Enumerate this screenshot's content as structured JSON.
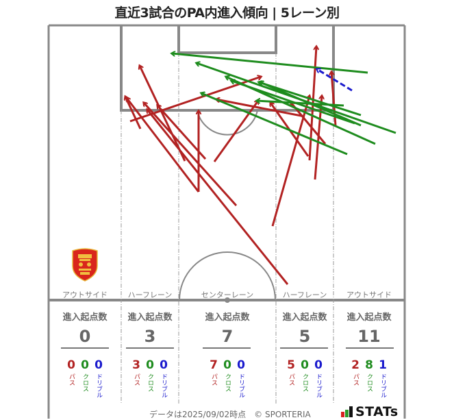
{
  "title": "直近3試合のPA内進入傾向 | 5レーン別",
  "colors": {
    "pass": "#b22222",
    "cross": "#1e8c1e",
    "dribble": "#1a1acd",
    "pitch_line": "#888888"
  },
  "lanes": [
    {
      "label": "アウトサイド"
    },
    {
      "label": "ハーフレーン"
    },
    {
      "label": "センターレーン"
    },
    {
      "label": "ハーフレーン"
    },
    {
      "label": "アウトサイド"
    }
  ],
  "stats": [
    {
      "head": "進入起点数",
      "total": "0",
      "pass": "0",
      "cross": "0",
      "dribble": "0"
    },
    {
      "head": "進入起点数",
      "total": "3",
      "pass": "3",
      "cross": "0",
      "dribble": "0"
    },
    {
      "head": "進入起点数",
      "total": "7",
      "pass": "7",
      "cross": "0",
      "dribble": "0"
    },
    {
      "head": "進入起点数",
      "total": "5",
      "pass": "5",
      "cross": "0",
      "dribble": "0"
    },
    {
      "head": "進入起点数",
      "total": "11",
      "pass": "2",
      "cross": "8",
      "dribble": "1"
    }
  ],
  "breakdown_labels": {
    "pass": "パス",
    "cross": "クロス",
    "dribble": "ドリブル"
  },
  "footer": {
    "note": "データは2025/09/02時点　© SPORTERIA",
    "logo": "STATs"
  },
  "chart_data": {
    "type": "flow-map",
    "title": "直近3試合のPA内進入傾向 | 5レーン別",
    "lanes": [
      "アウトサイド",
      "ハーフレーン",
      "センターレーン",
      "ハーフレーン",
      "アウトサイド"
    ],
    "legend": [
      "パス",
      "クロス",
      "ドリブル"
    ],
    "series": [
      {
        "name": "パス",
        "values": [
          0,
          3,
          7,
          5,
          2
        ]
      },
      {
        "name": "クロス",
        "values": [
          0,
          0,
          0,
          0,
          8
        ]
      },
      {
        "name": "ドリブル",
        "values": [
          0,
          0,
          0,
          0,
          1
        ]
      }
    ],
    "totals": [
      0,
      3,
      7,
      5,
      11
    ],
    "arrows": [
      {
        "type": "pass",
        "from": [
          270,
          235
        ],
        "to": [
          204,
          96
        ]
      },
      {
        "type": "pass",
        "from": [
          290,
          280
        ],
        "to": [
          185,
          143
        ]
      },
      {
        "type": "pass",
        "from": [
          345,
          300
        ],
        "to": [
          210,
          150
        ]
      },
      {
        "type": "pass",
        "from": [
          205,
          188
        ],
        "to": [
          183,
          141
        ]
      },
      {
        "type": "pass",
        "from": [
          190,
          177
        ],
        "to": [
          381,
          112
        ]
      },
      {
        "type": "pass",
        "from": [
          300,
          232
        ],
        "to": [
          230,
          154
        ]
      },
      {
        "type": "pass",
        "from": [
          290,
          280
        ],
        "to": [
          290,
          162
        ]
      },
      {
        "type": "pass",
        "from": [
          313,
          236
        ],
        "to": [
          377,
          147
        ]
      },
      {
        "type": "pass",
        "from": [
          420,
          415
        ],
        "to": [
          215,
          160
        ]
      },
      {
        "type": "pass",
        "from": [
          398,
          330
        ],
        "to": [
          452,
          140
        ]
      },
      {
        "type": "pass",
        "from": [
          452,
          234
        ],
        "to": [
          462,
          68
        ]
      },
      {
        "type": "pass",
        "from": [
          490,
          183
        ],
        "to": [
          484,
          105
        ]
      },
      {
        "type": "pass",
        "from": [
          460,
          262
        ],
        "to": [
          470,
          140
        ]
      },
      {
        "type": "pass",
        "from": [
          445,
          170
        ],
        "to": [
          316,
          145
        ]
      },
      {
        "type": "pass",
        "from": [
          450,
          228
        ],
        "to": [
          395,
          150
        ]
      },
      {
        "type": "pass",
        "from": [
          475,
          210
        ],
        "to": [
          425,
          150
        ]
      },
      {
        "type": "cross",
        "from": [
          537,
          106
        ],
        "to": [
          251,
          78
        ]
      },
      {
        "type": "cross",
        "from": [
          578,
          194
        ],
        "to": [
          287,
          92
        ]
      },
      {
        "type": "cross",
        "from": [
          548,
          210
        ],
        "to": [
          330,
          112
        ]
      },
      {
        "type": "cross",
        "from": [
          527,
          183
        ],
        "to": [
          380,
          120
        ]
      },
      {
        "type": "cross",
        "from": [
          527,
          168
        ],
        "to": [
          378,
          120
        ]
      },
      {
        "type": "cross",
        "from": [
          507,
          225
        ],
        "to": [
          294,
          136
        ]
      },
      {
        "type": "cross",
        "from": [
          502,
          154
        ],
        "to": [
          375,
          147
        ]
      },
      {
        "type": "cross",
        "from": [
          518,
          180
        ],
        "to": [
          338,
          118
        ]
      },
      {
        "type": "dribble",
        "from": [
          514,
          132
        ],
        "to": [
          463,
          101
        ]
      }
    ]
  }
}
